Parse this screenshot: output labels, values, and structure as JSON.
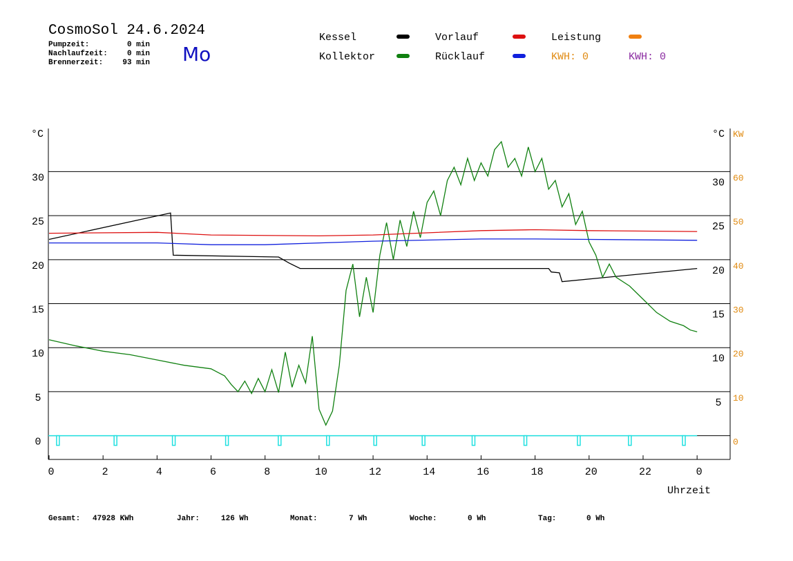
{
  "header": {
    "title": "CosmoSol 24.6.2024",
    "day": "Mo",
    "info": [
      [
        "Pumpzeit:",
        "0 min"
      ],
      [
        "Nachlaufzeit:",
        "0 min"
      ],
      [
        "Brennerzeit:",
        "93 min"
      ]
    ]
  },
  "legend_extra": [
    {
      "text": "KWH: 0",
      "color": "#e08a10"
    },
    {
      "text": "KWH: 0",
      "color": "#8a2aa0"
    }
  ],
  "footer": [
    [
      "Gesamt:",
      "47928 KWh"
    ],
    [
      "Jahr:",
      "126 Wh"
    ],
    [
      "Monat:",
      "7 Wh"
    ],
    [
      "Woche:",
      "0 Wh"
    ],
    [
      "Tag:",
      "0 Wh"
    ]
  ],
  "chart_data": {
    "type": "line",
    "y_unit": "°C",
    "y2_unit": "KW",
    "x_label": "Uhrzeit",
    "xlim": [
      0,
      25.23
    ],
    "xticks": [
      0,
      2,
      4,
      6,
      8,
      10,
      12,
      14,
      16,
      18,
      20,
      22,
      {
        "value": 24,
        "label": "0"
      }
    ],
    "ylim": [
      -2.7,
      34.9
    ],
    "yticks": [
      0,
      5,
      10,
      15,
      20,
      25,
      30
    ],
    "y2lim": [
      -5.4,
      69.8
    ],
    "y2ticks": [
      0,
      10,
      20,
      30,
      40,
      50,
      60
    ],
    "grid": true,
    "series": [
      {
        "name": "Kessel",
        "color": "#000000",
        "x": [
          0,
          4.5,
          4.6,
          8.5,
          8.9,
          9.3,
          18.5,
          18.6,
          18.9,
          19.0,
          24
        ],
        "values": [
          22.3,
          25.3,
          20.5,
          20.3,
          19.6,
          19.0,
          19.0,
          18.6,
          18.5,
          17.5,
          19.0
        ]
      },
      {
        "name": "Kollektor",
        "color": "#108010",
        "x": [
          0,
          1,
          2,
          3,
          4,
          5,
          6,
          6.25,
          6.5,
          6.75,
          7,
          7.25,
          7.5,
          7.75,
          8,
          8.25,
          8.5,
          8.75,
          9,
          9.25,
          9.5,
          9.75,
          10,
          10.25,
          10.5,
          10.75,
          11,
          11.25,
          11.5,
          11.75,
          12,
          12.25,
          12.5,
          12.75,
          13,
          13.25,
          13.5,
          13.75,
          14,
          14.25,
          14.5,
          14.75,
          15,
          15.25,
          15.5,
          15.75,
          16,
          16.25,
          16.5,
          16.75,
          17,
          17.25,
          17.5,
          17.75,
          18,
          18.25,
          18.5,
          18.75,
          19,
          19.25,
          19.5,
          19.75,
          20,
          20.25,
          20.5,
          20.75,
          21,
          21.5,
          22,
          22.5,
          23,
          23.5,
          23.75,
          24
        ],
        "values": [
          10.9,
          10.2,
          9.6,
          9.2,
          8.6,
          8.0,
          7.6,
          7.2,
          6.8,
          5.8,
          5.0,
          6.2,
          4.8,
          6.5,
          5.0,
          7.5,
          4.9,
          9.5,
          5.5,
          8.0,
          6.0,
          11.3,
          3.0,
          1.2,
          2.8,
          8.0,
          16.5,
          19.5,
          13.5,
          18.0,
          14.0,
          20.5,
          24.2,
          20.0,
          24.5,
          21.5,
          25.5,
          22.5,
          26.5,
          27.8,
          25.0,
          29.0,
          30.5,
          28.5,
          31.5,
          29.0,
          31.0,
          29.5,
          32.5,
          33.4,
          30.5,
          31.5,
          29.5,
          32.8,
          30.0,
          31.5,
          28.0,
          29.0,
          26.0,
          27.5,
          24.0,
          25.5,
          22.0,
          20.5,
          18.0,
          19.5,
          18.0,
          17.0,
          15.5,
          14.0,
          13.0,
          12.5,
          12.0,
          11.8
        ]
      },
      {
        "name": "Vorlauf",
        "color": "#dd1010",
        "x": [
          0,
          4,
          6,
          10,
          12,
          16,
          18,
          20,
          24
        ],
        "values": [
          23.0,
          23.1,
          22.8,
          22.7,
          22.8,
          23.3,
          23.4,
          23.3,
          23.2
        ]
      },
      {
        "name": "Rücklauf",
        "color": "#1020dd",
        "x": [
          0,
          4,
          6,
          8,
          12,
          16,
          18,
          20,
          24
        ],
        "values": [
          21.9,
          21.9,
          21.7,
          21.7,
          22.1,
          22.35,
          22.35,
          22.3,
          22.2
        ]
      },
      {
        "name": "Leistung",
        "color": "#f08010",
        "axis": "y2",
        "x": [],
        "values": []
      }
    ],
    "markers": {
      "color": "#20e0e0",
      "x": [
        0.33,
        2.46,
        4.62,
        6.59,
        8.54,
        10.33,
        12.08,
        13.87,
        15.72,
        17.64,
        19.62,
        21.51,
        23.51
      ]
    }
  }
}
